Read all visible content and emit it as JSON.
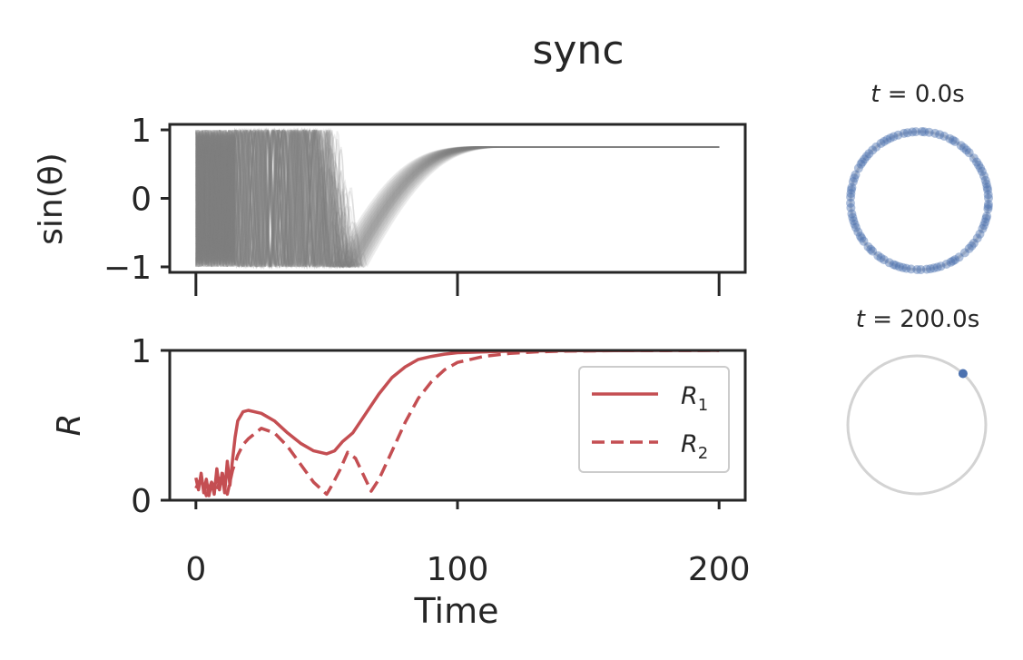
{
  "figure": {
    "title": "sync"
  },
  "chart_data": [
    {
      "type": "line",
      "name": "phase-traces",
      "ylabel": "sin(θ)",
      "xlim": [
        -10,
        210
      ],
      "ylim": [
        -1.08,
        1.08
      ],
      "xticks": [
        0,
        100,
        200
      ],
      "yticks": [
        -1,
        0,
        1
      ],
      "ytick_labels": [
        "−1",
        "0",
        "1"
      ],
      "show_xtick_labels": false,
      "grid": false,
      "series_color": "#808080",
      "n_oscillators": 100,
      "converged_value": 0.75,
      "description": "many translucent grey sin(θ) traces that oscillate early and converge to one value"
    },
    {
      "type": "line",
      "name": "order-parameter",
      "ylabel": "R",
      "xlabel": "Time",
      "xlim": [
        -10,
        210
      ],
      "ylim": [
        0,
        1
      ],
      "xticks": [
        0,
        100,
        200
      ],
      "yticks": [
        0,
        1
      ],
      "xtick_labels": [
        "0",
        "100",
        "200"
      ],
      "ytick_labels": [
        "0",
        "1"
      ],
      "grid": false,
      "legend_position": "center-right",
      "series": [
        {
          "name": "R",
          "subscript": "1",
          "style": "solid",
          "color": "#c44e52",
          "x": [
            0,
            1,
            2,
            3,
            4,
            5,
            6,
            7,
            8,
            9,
            10,
            11,
            12,
            13,
            14,
            15,
            16,
            18,
            20,
            25,
            30,
            35,
            40,
            45,
            50,
            53,
            56,
            60,
            65,
            70,
            75,
            80,
            85,
            90,
            95,
            100,
            110,
            120,
            130,
            140,
            160,
            180,
            200
          ],
          "y": [
            0.15,
            0.07,
            0.18,
            0.05,
            0.14,
            0.03,
            0.12,
            0.04,
            0.21,
            0.07,
            0.18,
            0.05,
            0.26,
            0.1,
            0.27,
            0.42,
            0.53,
            0.59,
            0.6,
            0.58,
            0.53,
            0.45,
            0.38,
            0.33,
            0.31,
            0.33,
            0.39,
            0.45,
            0.58,
            0.71,
            0.82,
            0.89,
            0.94,
            0.96,
            0.975,
            0.985,
            0.99,
            0.995,
            0.997,
            0.998,
            0.999,
            1.0,
            1.0
          ]
        },
        {
          "name": "R",
          "subscript": "2",
          "style": "dashed",
          "color": "#c44e52",
          "x": [
            0,
            2,
            4,
            6,
            8,
            10,
            12,
            14,
            16,
            18,
            20,
            25,
            30,
            35,
            40,
            45,
            50,
            52,
            55,
            58,
            61,
            64,
            67,
            70,
            75,
            80,
            85,
            90,
            95,
            100,
            110,
            120,
            130,
            140,
            160,
            180,
            200
          ],
          "y": [
            0.08,
            0.15,
            0.03,
            0.12,
            0.06,
            0.19,
            0.04,
            0.2,
            0.3,
            0.37,
            0.41,
            0.48,
            0.45,
            0.36,
            0.24,
            0.12,
            0.04,
            0.1,
            0.2,
            0.32,
            0.28,
            0.17,
            0.06,
            0.14,
            0.33,
            0.52,
            0.68,
            0.79,
            0.87,
            0.92,
            0.96,
            0.98,
            0.99,
            0.995,
            0.998,
            0.999,
            1.0
          ]
        }
      ]
    },
    {
      "type": "scatter",
      "name": "phase-circle-start",
      "title": "t = 0.0s",
      "title_var": "t",
      "title_value": "0.0s",
      "point_color": "#4c72b0",
      "circle_color": "#d3d3d3",
      "n_points": 100,
      "angles_deg": [
        2,
        9,
        14,
        21,
        25,
        31,
        38,
        44,
        47,
        53,
        59,
        64,
        69,
        77,
        82,
        88,
        93,
        96,
        103,
        108,
        112,
        118,
        124,
        129,
        133,
        137,
        143,
        148,
        152,
        158,
        164,
        169,
        171,
        177,
        182,
        186,
        191,
        197,
        203,
        207,
        211,
        216,
        222,
        227,
        233,
        239,
        244,
        248,
        253,
        259,
        263,
        268,
        271,
        276,
        282,
        288,
        293,
        297,
        301,
        305,
        311,
        316,
        322,
        327,
        331,
        336,
        342,
        347,
        353,
        357,
        5,
        17,
        28,
        50,
        73,
        100,
        121,
        140,
        161,
        194,
        213,
        236,
        256,
        279,
        299,
        319,
        339,
        355,
        11,
        34,
        61,
        86,
        115,
        146,
        174,
        200,
        225,
        250,
        285,
        345
      ]
    },
    {
      "type": "scatter",
      "name": "phase-circle-end",
      "title": "t = 200.0s",
      "title_var": "t",
      "title_value": "200.0s",
      "point_color": "#4c72b0",
      "circle_color": "#d3d3d3",
      "angles_deg": [
        48
      ]
    }
  ]
}
